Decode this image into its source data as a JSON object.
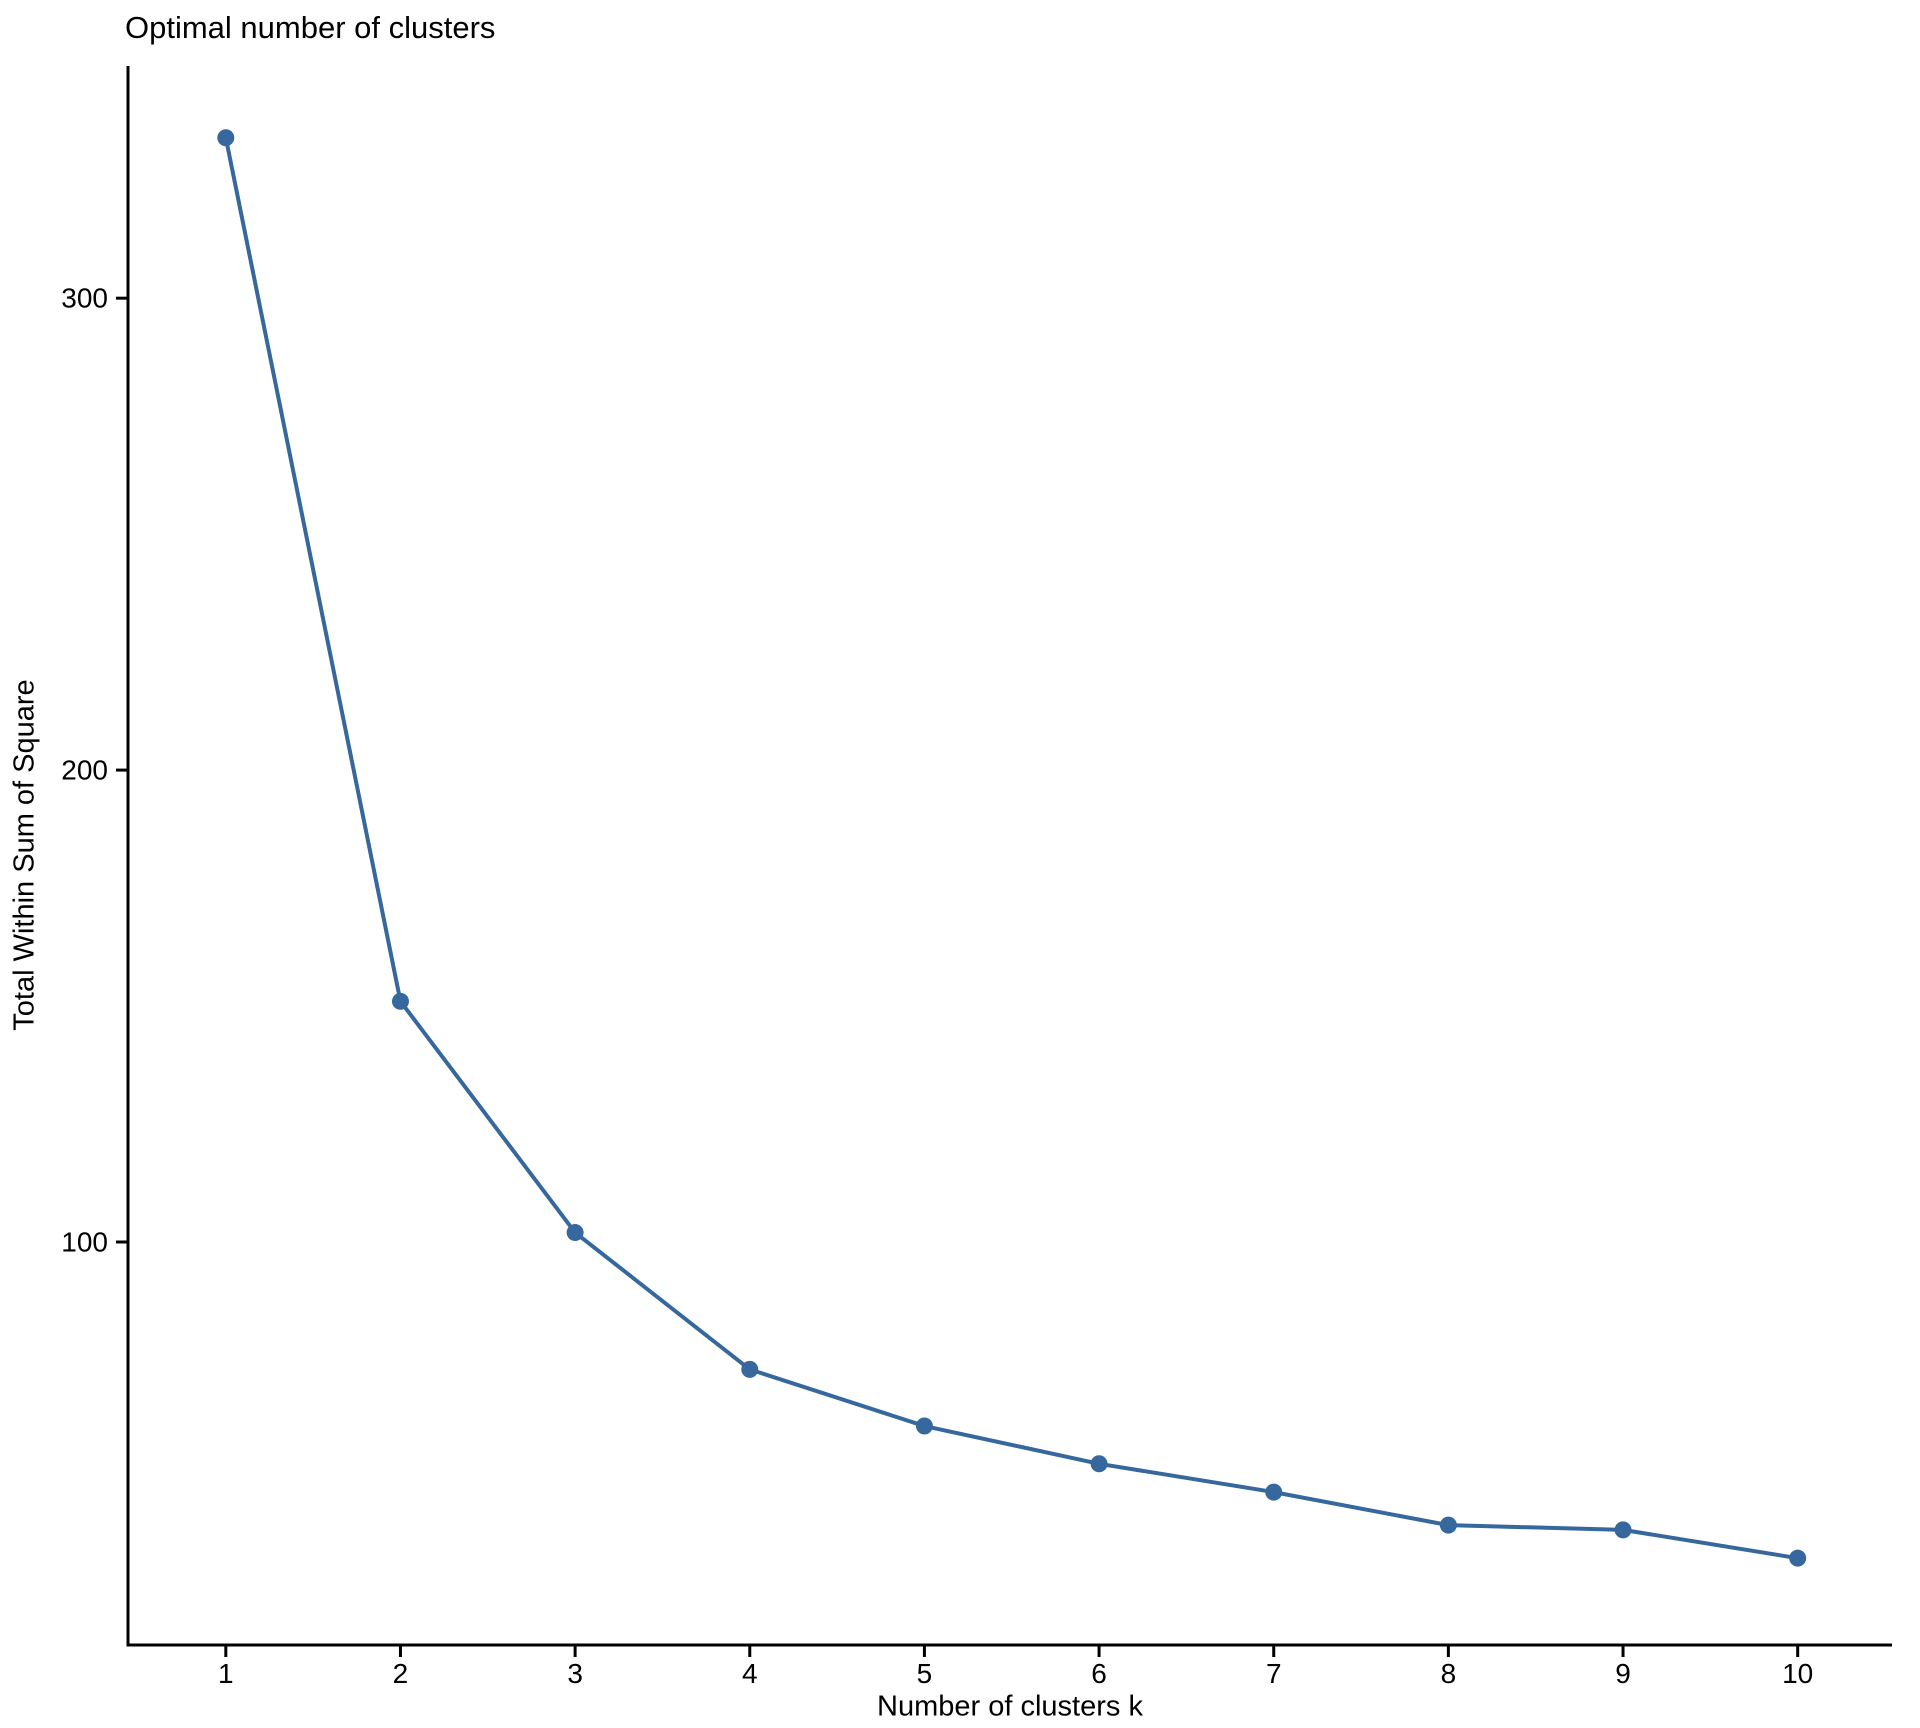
{
  "chart_data": {
    "type": "line",
    "title": "Optimal number of clusters",
    "xlabel": "Number of clusters k",
    "ylabel": "Total Within Sum of Square",
    "x": [
      1,
      2,
      3,
      4,
      5,
      6,
      7,
      8,
      9,
      10
    ],
    "series": [
      {
        "name": "Total within sum of square",
        "values": [
          334,
          151,
          102,
          73,
          61,
          53,
          47,
          40,
          39,
          33
        ]
      }
    ],
    "x_ticks": [
      "1",
      "2",
      "3",
      "4",
      "5",
      "6",
      "7",
      "8",
      "9",
      "10"
    ],
    "y_ticks": [
      "100",
      "200",
      "300"
    ],
    "y_tick_values": [
      100,
      200,
      300
    ],
    "xlim": [
      0.44,
      10.54
    ],
    "ylim": [
      14.6,
      349.2
    ],
    "grid": false,
    "legend": "none",
    "marker": "point-and-line",
    "colors": {
      "line": "#36689E",
      "point": "#36689E",
      "axis": "#000000",
      "text": "#000000",
      "background": "#FFFFFF"
    }
  }
}
